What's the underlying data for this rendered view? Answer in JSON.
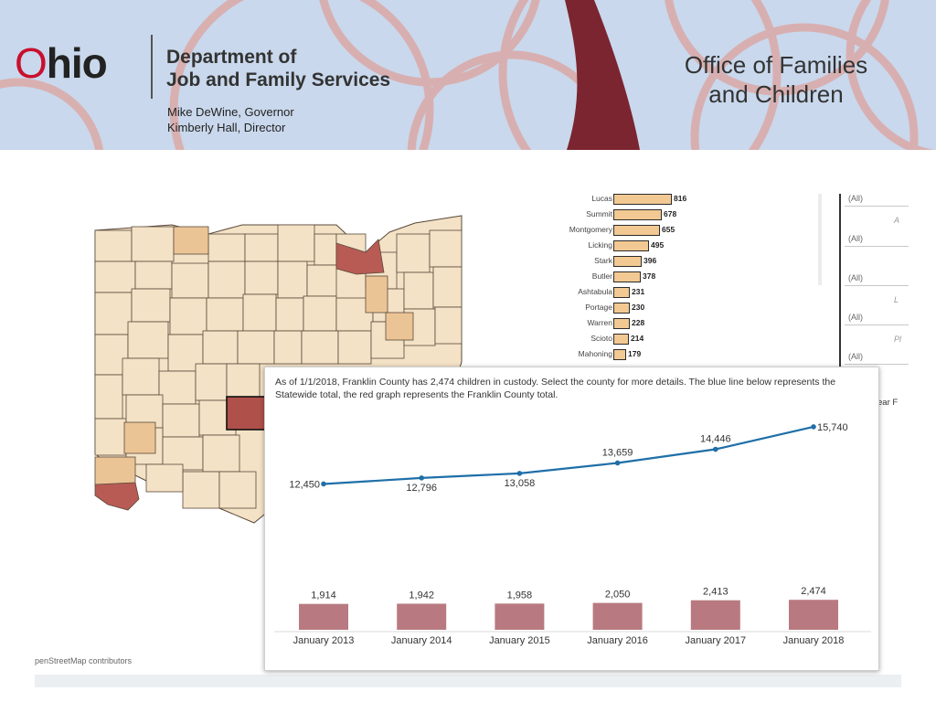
{
  "header": {
    "logo_o": "O",
    "logo_rest": "hio",
    "dept_line1": "Department of",
    "dept_line2": "Job and Family Services",
    "governor": "Mike DeWine, Governor",
    "director": "Kimberly Hall, Director",
    "office_line1": "Office of Families",
    "office_line2": "and Children",
    "colors": {
      "banner_bg": "#c9d8ec",
      "brand_red": "#c8102e",
      "maroon_ribbon": "#7b2530",
      "arc_color": "#e58f80"
    }
  },
  "map": {
    "attribution": "penStreetMap contributors",
    "colors": {
      "low": "#f3e2c6",
      "mid": "#ebc496",
      "high": "#b85b55",
      "selected": "#b0504a",
      "border": "#5a4a3a"
    }
  },
  "county_list": {
    "rows": [
      {
        "name": "Lucas",
        "value": 816
      },
      {
        "name": "Summit",
        "value": 678
      },
      {
        "name": "Montgomery",
        "value": 655
      },
      {
        "name": "Licking",
        "value": 495
      },
      {
        "name": "Stark",
        "value": 396
      },
      {
        "name": "Butler",
        "value": 378
      },
      {
        "name": "Ashtabula",
        "value": 231
      },
      {
        "name": "Portage",
        "value": 230
      },
      {
        "name": "Warren",
        "value": 228
      },
      {
        "name": "Scioto",
        "value": 214
      },
      {
        "name": "Mahoning",
        "value": 179
      }
    ],
    "bar_color": "#f2c992",
    "max_value": 816
  },
  "filters": [
    {
      "value": "(All)",
      "caption": "A"
    },
    {
      "value": "(All)",
      "caption": ""
    },
    {
      "value": "(All)",
      "caption": "L"
    },
    {
      "value": "(All)",
      "caption": "Pl"
    },
    {
      "value": "(All)",
      "caption": ""
    }
  ],
  "year_filter_label": "ear F",
  "tooltip": {
    "text": "As of 1/1/2018, Franklin County has 2,474 children in custody. Select the county for more details. The blue line below represents the Statewide total, the red graph represents the Franklin County total."
  },
  "chart_data": {
    "type": "line",
    "categories": [
      "January 2013",
      "January 2014",
      "January 2015",
      "January 2016",
      "January 2017",
      "January 2018"
    ],
    "series": [
      {
        "values": [
          12450,
          12796,
          13058,
          13659,
          14446,
          15740
        ],
        "labels": [
          "12,450",
          "12,796",
          "13,058",
          "13,659",
          "14,446",
          "15,740"
        ],
        "color": "#1f6fa8",
        "type": "line"
      },
      {
        "values": [
          1914,
          1942,
          1958,
          2050,
          2413,
          2474
        ],
        "labels": [
          "1,914",
          "1,942",
          "1,958",
          "2,050",
          "2,413",
          "2,474"
        ],
        "color": "#b87a80",
        "type": "bar"
      }
    ],
    "title": "",
    "xlabel": "",
    "ylabel": "",
    "grid": false
  }
}
